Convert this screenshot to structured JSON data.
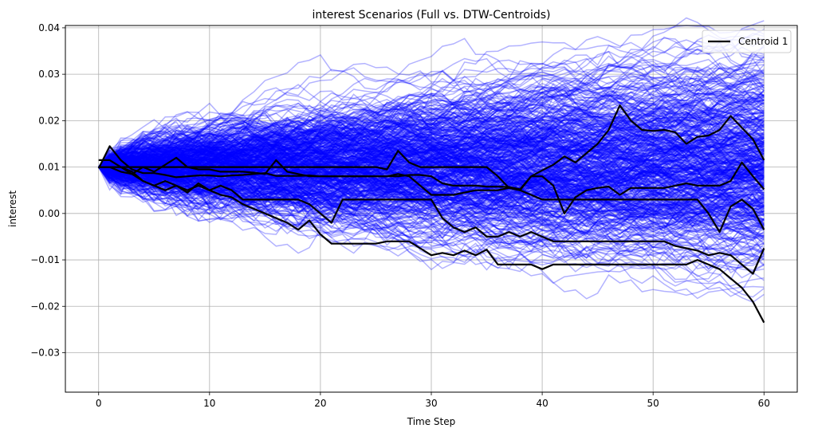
{
  "chart_data": {
    "type": "line",
    "title": "interest Scenarios (Full vs. DTW-Centroids)",
    "xlabel": "Time Step",
    "ylabel": "interest",
    "xlim": [
      -3,
      63
    ],
    "ylim": [
      -0.0385,
      0.0405
    ],
    "xticks": [
      0,
      10,
      20,
      30,
      40,
      50,
      60
    ],
    "xtick_labels": [
      "0",
      "10",
      "20",
      "30",
      "40",
      "50",
      "60"
    ],
    "yticks": [
      -0.03,
      -0.02,
      -0.01,
      0.0,
      0.01,
      0.02,
      0.03,
      0.04
    ],
    "ytick_labels": [
      "−0.03",
      "−0.02",
      "−0.01",
      "0.00",
      "0.01",
      "0.02",
      "0.03",
      "0.04"
    ],
    "grid": true,
    "legend": {
      "placement": "top-right",
      "entries": [
        "Centroid 1"
      ]
    },
    "background_scenarios": {
      "count": 500,
      "color": "#0000ff",
      "opacity": 0.3,
      "start_value": 0.01,
      "timesteps": 61,
      "note_visible": false
    },
    "series": [
      {
        "name": "Centroid 1",
        "color": "#000000",
        "x": [
          0,
          1,
          2,
          3,
          4,
          5,
          6,
          7,
          8,
          9,
          10,
          11,
          12,
          13,
          14,
          15,
          16,
          17,
          18,
          19,
          20,
          21,
          22,
          23,
          24,
          25,
          26,
          27,
          28,
          29,
          30,
          31,
          32,
          33,
          34,
          35,
          36,
          37,
          38,
          39,
          40,
          41,
          42,
          43,
          44,
          45,
          46,
          47,
          48,
          49,
          50,
          51,
          52,
          53,
          54,
          55,
          56,
          57,
          58,
          59,
          60
        ],
        "values": [
          0.0097,
          0.0145,
          0.0115,
          0.0095,
          0.0087,
          0.0087,
          0.0083,
          0.0078,
          0.008,
          0.0082,
          0.0082,
          0.008,
          0.0082,
          0.0083,
          0.0085,
          0.0087,
          0.0081,
          0.0081,
          0.0081,
          0.0082,
          0.008,
          0.008,
          0.008,
          0.008,
          0.008,
          0.008,
          0.008,
          0.008,
          0.0083,
          0.0083,
          0.008,
          0.0065,
          0.006,
          0.006,
          0.006,
          0.0058,
          0.0058,
          0.0057,
          0.0052,
          0.008,
          0.0093,
          0.0105,
          0.0123,
          0.011,
          0.013,
          0.015,
          0.018,
          0.0233,
          0.02,
          0.018,
          0.0178,
          0.018,
          0.0175,
          0.015,
          0.0165,
          0.0168,
          0.018,
          0.021,
          0.0185,
          0.016,
          0.0115
        ]
      },
      {
        "name": "",
        "color": "#000000",
        "x": [
          0,
          1,
          2,
          3,
          4,
          5,
          6,
          7,
          8,
          9,
          10,
          11,
          12,
          13,
          14,
          15,
          16,
          17,
          18,
          19,
          20,
          21,
          22,
          23,
          24,
          25,
          26,
          27,
          28,
          29,
          30,
          31,
          32,
          33,
          34,
          35,
          36,
          37,
          38,
          39,
          40,
          41,
          42,
          43,
          44,
          45,
          46,
          47,
          48,
          49,
          50,
          51,
          52,
          53,
          54,
          55,
          56,
          57,
          58,
          59,
          60
        ],
        "values": [
          0.01,
          0.01,
          0.01,
          0.01,
          0.01,
          0.01,
          0.01,
          0.01,
          0.01,
          0.01,
          0.01,
          0.01,
          0.01,
          0.01,
          0.01,
          0.01,
          0.01,
          0.01,
          0.01,
          0.01,
          0.01,
          0.01,
          0.01,
          0.01,
          0.01,
          0.01,
          0.0095,
          0.0135,
          0.011,
          0.01,
          0.01,
          0.01,
          0.01,
          0.01,
          0.01,
          0.01,
          0.008,
          0.0055,
          0.005,
          0.008,
          0.008,
          0.006,
          0.0,
          0.0035,
          0.005,
          0.0055,
          0.0058,
          0.004,
          0.0055,
          0.0055,
          0.0055,
          0.0055,
          0.006,
          0.0065,
          0.006,
          0.006,
          0.006,
          0.007,
          0.011,
          0.008,
          0.0052
        ]
      },
      {
        "name": "",
        "color": "#000000",
        "x": [
          0,
          1,
          2,
          3,
          4,
          5,
          6,
          7,
          8,
          9,
          10,
          11,
          12,
          13,
          14,
          15,
          16,
          17,
          18,
          19,
          20,
          21,
          22,
          23,
          24,
          25,
          26,
          27,
          28,
          29,
          30,
          31,
          32,
          33,
          34,
          35,
          36,
          37,
          38,
          39,
          40,
          41,
          42,
          43,
          44,
          45,
          46,
          47,
          48,
          49,
          50,
          51,
          52,
          53,
          54,
          55,
          56,
          57,
          58,
          59,
          60
        ],
        "values": [
          0.0115,
          0.0115,
          0.01,
          0.0085,
          0.01,
          0.009,
          0.0105,
          0.012,
          0.01,
          0.0095,
          0.0095,
          0.009,
          0.009,
          0.009,
          0.0088,
          0.0085,
          0.0115,
          0.009,
          0.0085,
          0.008,
          0.008,
          0.008,
          0.008,
          0.008,
          0.008,
          0.008,
          0.008,
          0.0085,
          0.008,
          0.006,
          0.004,
          0.004,
          0.004,
          0.0045,
          0.005,
          0.005,
          0.005,
          0.0055,
          0.005,
          0.004,
          0.003,
          0.003,
          0.003,
          0.003,
          0.003,
          0.003,
          0.003,
          0.003,
          0.003,
          0.003,
          0.003,
          0.003,
          0.003,
          0.003,
          0.003,
          0.0,
          -0.004,
          0.0015,
          0.003,
          0.001,
          -0.0035
        ]
      },
      {
        "name": "",
        "color": "#000000",
        "x": [
          0,
          1,
          2,
          3,
          4,
          5,
          6,
          7,
          8,
          9,
          10,
          11,
          12,
          13,
          14,
          15,
          16,
          17,
          18,
          19,
          20,
          21,
          22,
          23,
          24,
          25,
          26,
          27,
          28,
          29,
          30,
          31,
          32,
          33,
          34,
          35,
          36,
          37,
          38,
          39,
          40,
          41,
          42,
          43,
          44,
          45,
          46,
          47,
          48,
          49,
          50,
          51,
          52,
          53,
          54,
          55,
          56,
          57,
          58,
          59,
          60
        ],
        "values": [
          0.01,
          0.01,
          0.01,
          0.009,
          0.007,
          0.006,
          0.007,
          0.006,
          0.005,
          0.006,
          0.005,
          0.006,
          0.005,
          0.003,
          0.003,
          0.003,
          0.003,
          0.003,
          0.003,
          0.002,
          0.0,
          -0.002,
          0.003,
          0.003,
          0.003,
          0.003,
          0.003,
          0.003,
          0.003,
          0.003,
          0.003,
          -0.001,
          -0.003,
          -0.004,
          -0.003,
          -0.005,
          -0.005,
          -0.004,
          -0.005,
          -0.004,
          -0.005,
          -0.006,
          -0.006,
          -0.006,
          -0.006,
          -0.006,
          -0.006,
          -0.006,
          -0.006,
          -0.006,
          -0.006,
          -0.006,
          -0.007,
          -0.0075,
          -0.008,
          -0.009,
          -0.0085,
          -0.009,
          -0.011,
          -0.013,
          -0.0075
        ]
      },
      {
        "name": "",
        "color": "#000000",
        "x": [
          0,
          1,
          2,
          3,
          4,
          5,
          6,
          7,
          8,
          9,
          10,
          11,
          12,
          13,
          14,
          15,
          16,
          17,
          18,
          19,
          20,
          21,
          22,
          23,
          24,
          25,
          26,
          27,
          28,
          29,
          30,
          31,
          32,
          33,
          34,
          35,
          36,
          37,
          38,
          39,
          40,
          41,
          42,
          43,
          44,
          45,
          46,
          47,
          48,
          49,
          50,
          51,
          52,
          53,
          54,
          55,
          56,
          57,
          58,
          59,
          60
        ],
        "values": [
          0.01,
          0.01,
          0.009,
          0.0085,
          0.007,
          0.006,
          0.005,
          0.006,
          0.0045,
          0.0065,
          0.005,
          0.004,
          0.0035,
          0.002,
          0.001,
          0.0,
          -0.001,
          -0.002,
          -0.0035,
          -0.0015,
          -0.0045,
          -0.0065,
          -0.0065,
          -0.0065,
          -0.0065,
          -0.0065,
          -0.006,
          -0.006,
          -0.006,
          -0.0075,
          -0.009,
          -0.0085,
          -0.009,
          -0.008,
          -0.009,
          -0.0078,
          -0.011,
          -0.011,
          -0.011,
          -0.011,
          -0.012,
          -0.011,
          -0.011,
          -0.011,
          -0.011,
          -0.011,
          -0.011,
          -0.011,
          -0.011,
          -0.011,
          -0.011,
          -0.011,
          -0.011,
          -0.011,
          -0.01,
          -0.011,
          -0.012,
          -0.014,
          -0.016,
          -0.019,
          -0.0235
        ]
      }
    ]
  }
}
